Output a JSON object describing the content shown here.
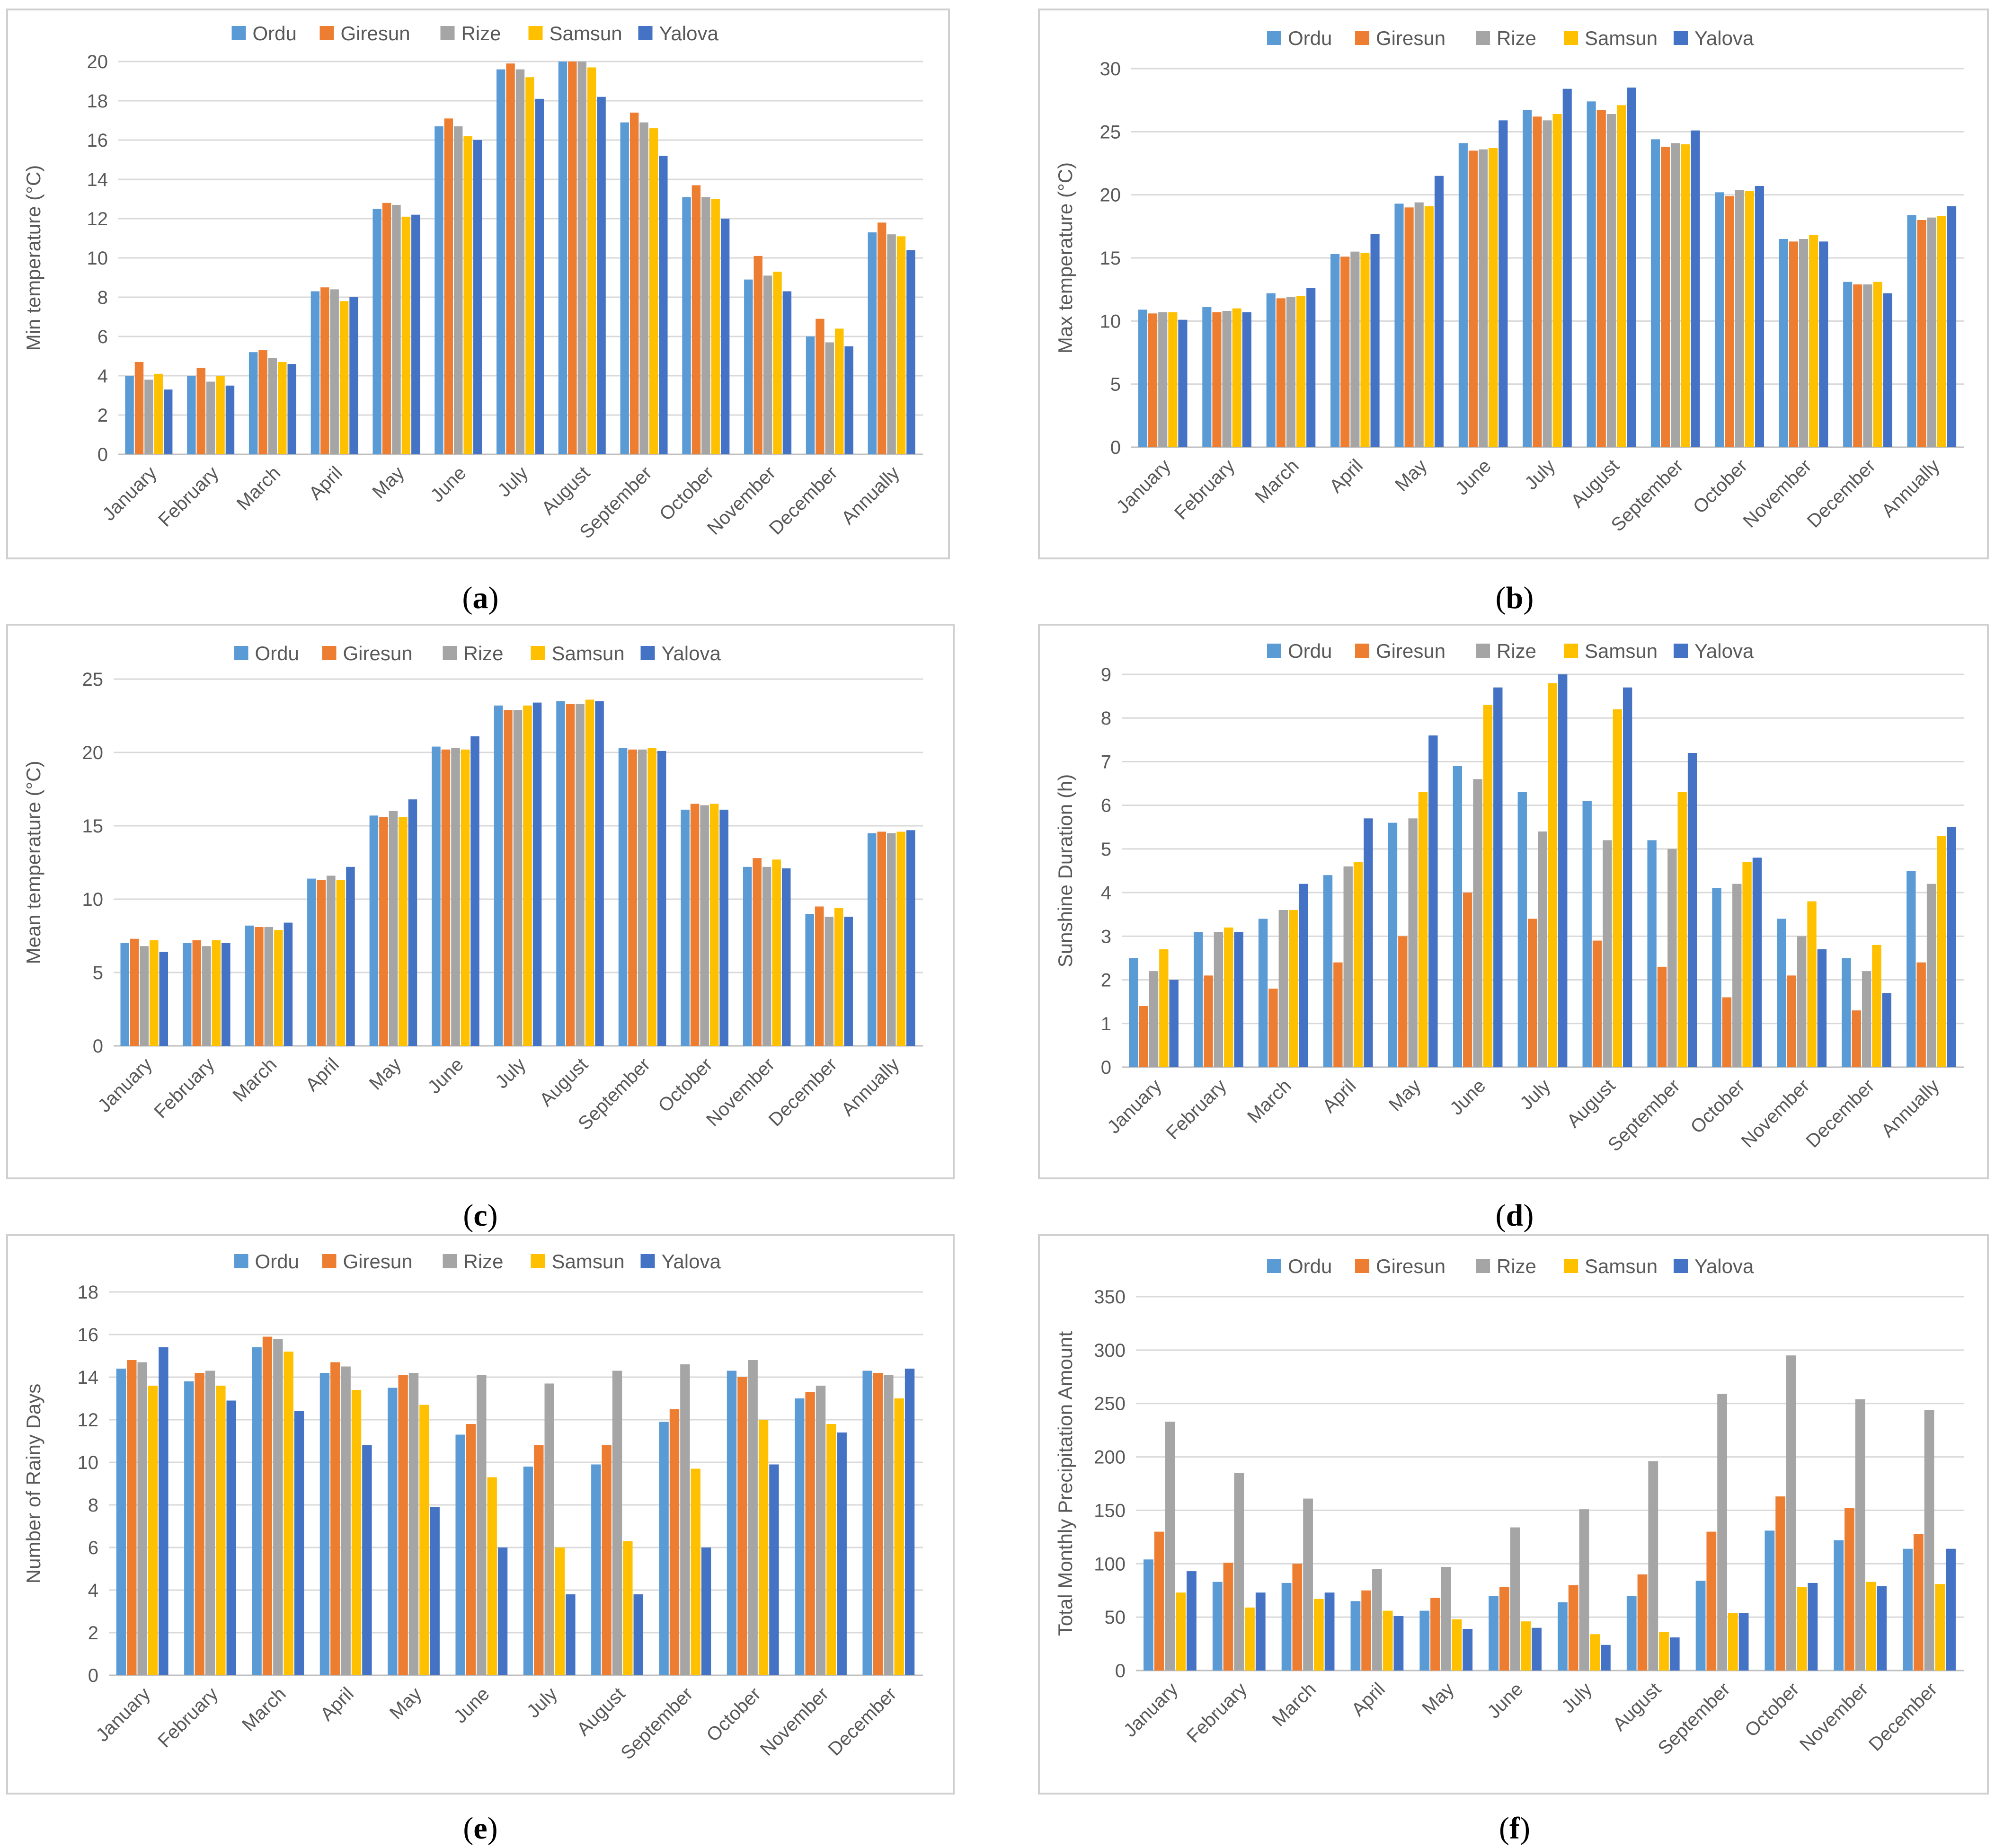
{
  "colors": {
    "Ordu": "#5B9BD5",
    "Giresun": "#ED7D31",
    "Rize": "#A5A5A5",
    "Samsun": "#FFC000",
    "Yalova": "#4472C4"
  },
  "chart_data": [
    {
      "type": "bar",
      "label": "a",
      "ylabel": "Min temperature (°C)",
      "ylim": [
        0,
        20
      ],
      "yticks": [
        0,
        2,
        4,
        6,
        8,
        10,
        12,
        14,
        16,
        18,
        20
      ],
      "categories": [
        "January",
        "February",
        "March",
        "April",
        "May",
        "June",
        "July",
        "August",
        "September",
        "October",
        "November",
        "December",
        "Annually"
      ],
      "series": [
        {
          "name": "Ordu",
          "values": [
            4.0,
            4.0,
            5.2,
            8.3,
            12.5,
            16.7,
            19.6,
            20.3,
            16.9,
            13.1,
            8.9,
            6.0,
            11.3
          ]
        },
        {
          "name": "Giresun",
          "values": [
            4.7,
            4.4,
            5.3,
            8.5,
            12.8,
            17.1,
            19.9,
            20.5,
            17.4,
            13.7,
            10.1,
            6.9,
            11.8
          ]
        },
        {
          "name": "Rize",
          "values": [
            3.8,
            3.7,
            4.9,
            8.4,
            12.7,
            16.7,
            19.6,
            20.3,
            16.9,
            13.1,
            9.1,
            5.7,
            11.2
          ]
        },
        {
          "name": "Samsun",
          "values": [
            4.1,
            4.0,
            4.7,
            7.8,
            12.1,
            16.2,
            19.2,
            19.7,
            16.6,
            13.0,
            9.3,
            6.4,
            11.1
          ]
        },
        {
          "name": "Yalova",
          "values": [
            3.3,
            3.5,
            4.6,
            8.0,
            12.2,
            16.0,
            18.1,
            18.2,
            15.2,
            12.0,
            8.3,
            5.5,
            10.4
          ]
        }
      ]
    },
    {
      "type": "bar",
      "label": "b",
      "ylabel": "Max temperature (°C)",
      "ylim": [
        0,
        30
      ],
      "yticks": [
        0,
        5,
        10,
        15,
        20,
        25,
        30
      ],
      "categories": [
        "January",
        "February",
        "March",
        "April",
        "May",
        "June",
        "July",
        "August",
        "September",
        "October",
        "November",
        "December",
        "Annually"
      ],
      "series": [
        {
          "name": "Ordu",
          "values": [
            10.9,
            11.1,
            12.2,
            15.3,
            19.3,
            24.1,
            26.7,
            27.4,
            24.4,
            20.2,
            16.5,
            13.1,
            18.4
          ]
        },
        {
          "name": "Giresun",
          "values": [
            10.6,
            10.7,
            11.8,
            15.1,
            19.0,
            23.5,
            26.2,
            26.7,
            23.8,
            19.9,
            16.3,
            12.9,
            18.0
          ]
        },
        {
          "name": "Rize",
          "values": [
            10.7,
            10.8,
            11.9,
            15.5,
            19.4,
            23.6,
            25.9,
            26.4,
            24.1,
            20.4,
            16.5,
            12.9,
            18.2
          ]
        },
        {
          "name": "Samsun",
          "values": [
            10.7,
            11.0,
            12.0,
            15.4,
            19.1,
            23.7,
            26.4,
            27.1,
            24.0,
            20.3,
            16.8,
            13.1,
            18.3
          ]
        },
        {
          "name": "Yalova",
          "values": [
            10.1,
            10.7,
            12.6,
            16.9,
            21.5,
            25.9,
            28.4,
            28.5,
            25.1,
            20.7,
            16.3,
            12.2,
            19.1
          ]
        }
      ]
    },
    {
      "type": "bar",
      "label": "c",
      "ylabel": "Mean temperature (°C)",
      "ylim": [
        0,
        25
      ],
      "yticks": [
        0,
        5,
        10,
        15,
        20,
        25
      ],
      "categories": [
        "January",
        "February",
        "March",
        "April",
        "May",
        "June",
        "July",
        "August",
        "September",
        "October",
        "November",
        "December",
        "Annually"
      ],
      "series": [
        {
          "name": "Ordu",
          "values": [
            7.0,
            7.0,
            8.2,
            11.4,
            15.7,
            20.4,
            23.2,
            23.5,
            20.3,
            16.1,
            12.2,
            9.0,
            14.5
          ]
        },
        {
          "name": "Giresun",
          "values": [
            7.3,
            7.2,
            8.1,
            11.3,
            15.6,
            20.2,
            22.9,
            23.3,
            20.2,
            16.5,
            12.8,
            9.5,
            14.6
          ]
        },
        {
          "name": "Rize",
          "values": [
            6.8,
            6.8,
            8.1,
            11.6,
            16.0,
            20.3,
            22.9,
            23.3,
            20.2,
            16.4,
            12.2,
            8.8,
            14.5
          ]
        },
        {
          "name": "Samsun",
          "values": [
            7.2,
            7.2,
            7.9,
            11.3,
            15.6,
            20.2,
            23.2,
            23.6,
            20.3,
            16.5,
            12.7,
            9.4,
            14.6
          ]
        },
        {
          "name": "Yalova",
          "values": [
            6.4,
            7.0,
            8.4,
            12.2,
            16.8,
            21.1,
            23.4,
            23.5,
            20.1,
            16.1,
            12.1,
            8.8,
            14.7
          ]
        }
      ]
    },
    {
      "type": "bar",
      "label": "d",
      "ylabel": "Sunshine Duration (h)",
      "ylim": [
        0,
        9
      ],
      "yticks": [
        0,
        1,
        2,
        3,
        4,
        5,
        6,
        7,
        8,
        9
      ],
      "categories": [
        "January",
        "February",
        "March",
        "April",
        "May",
        "June",
        "July",
        "August",
        "September",
        "October",
        "November",
        "December",
        "Annually"
      ],
      "series": [
        {
          "name": "Ordu",
          "values": [
            2.5,
            3.1,
            3.4,
            4.4,
            5.6,
            6.9,
            6.3,
            6.1,
            5.2,
            4.1,
            3.4,
            2.5,
            4.5
          ]
        },
        {
          "name": "Giresun",
          "values": [
            1.4,
            2.1,
            1.8,
            2.4,
            3.0,
            4.0,
            3.4,
            2.9,
            2.3,
            1.6,
            2.1,
            1.3,
            2.4
          ]
        },
        {
          "name": "Rize",
          "values": [
            2.2,
            3.1,
            3.6,
            4.6,
            5.7,
            6.6,
            5.4,
            5.2,
            5.0,
            4.2,
            3.0,
            2.2,
            4.2
          ]
        },
        {
          "name": "Samsun",
          "values": [
            2.7,
            3.2,
            3.6,
            4.7,
            6.3,
            8.3,
            8.8,
            8.2,
            6.3,
            4.7,
            3.8,
            2.8,
            5.3
          ]
        },
        {
          "name": "Yalova",
          "values": [
            2.0,
            3.1,
            4.2,
            5.7,
            7.6,
            8.7,
            9.1,
            8.7,
            7.2,
            4.8,
            2.7,
            1.7,
            5.5
          ]
        }
      ]
    },
    {
      "type": "bar",
      "label": "e",
      "ylabel": "Number of Rainy Days",
      "ylim": [
        0,
        18
      ],
      "yticks": [
        0,
        2,
        4,
        6,
        8,
        10,
        12,
        14,
        16,
        18
      ],
      "categories": [
        "January",
        "February",
        "March",
        "April",
        "May",
        "June",
        "July",
        "August",
        "September",
        "October",
        "November",
        "December"
      ],
      "series": [
        {
          "name": "Ordu",
          "values": [
            14.4,
            13.8,
            15.4,
            14.2,
            13.5,
            11.3,
            9.8,
            9.9,
            11.9,
            14.3,
            13.0,
            14.3
          ]
        },
        {
          "name": "Giresun",
          "values": [
            14.8,
            14.2,
            15.9,
            14.7,
            14.1,
            11.8,
            10.8,
            10.8,
            12.5,
            14.0,
            13.3,
            14.2
          ]
        },
        {
          "name": "Rize",
          "values": [
            14.7,
            14.3,
            15.8,
            14.5,
            14.2,
            14.1,
            13.7,
            14.3,
            14.6,
            14.8,
            13.6,
            14.1
          ]
        },
        {
          "name": "Samsun",
          "values": [
            13.6,
            13.6,
            15.2,
            13.4,
            12.7,
            9.3,
            6.0,
            6.3,
            9.7,
            12.0,
            11.8,
            13.0
          ]
        },
        {
          "name": "Yalova",
          "values": [
            15.4,
            12.9,
            12.4,
            10.8,
            7.9,
            6.0,
            3.8,
            3.8,
            6.0,
            9.9,
            11.4,
            14.4
          ]
        }
      ]
    },
    {
      "type": "bar",
      "label": "f",
      "ylabel": "Total Monthly Precipitation Amount",
      "ylim": [
        0,
        350
      ],
      "yticks": [
        0,
        50,
        100,
        150,
        200,
        250,
        300,
        350
      ],
      "categories": [
        "January",
        "February",
        "March",
        "April",
        "May",
        "June",
        "July",
        "August",
        "September",
        "October",
        "November",
        "December"
      ],
      "series": [
        {
          "name": "Ordu",
          "values": [
            104,
            83,
            82,
            65,
            56,
            70,
            64,
            70,
            84,
            131,
            122,
            114
          ]
        },
        {
          "name": "Giresun",
          "values": [
            130,
            101,
            100,
            75,
            68,
            78,
            80,
            90,
            130,
            163,
            152,
            128
          ]
        },
        {
          "name": "Rize",
          "values": [
            233,
            185,
            161,
            95,
            97,
            134,
            151,
            196,
            259,
            295,
            254,
            244
          ]
        },
        {
          "name": "Samsun",
          "values": [
            73,
            59,
            67,
            56,
            48,
            46,
            34,
            36,
            54,
            78,
            83,
            81
          ]
        },
        {
          "name": "Yalova",
          "values": [
            93,
            73,
            73,
            51,
            39,
            40,
            24,
            31,
            54,
            82,
            79,
            114
          ]
        }
      ]
    }
  ]
}
